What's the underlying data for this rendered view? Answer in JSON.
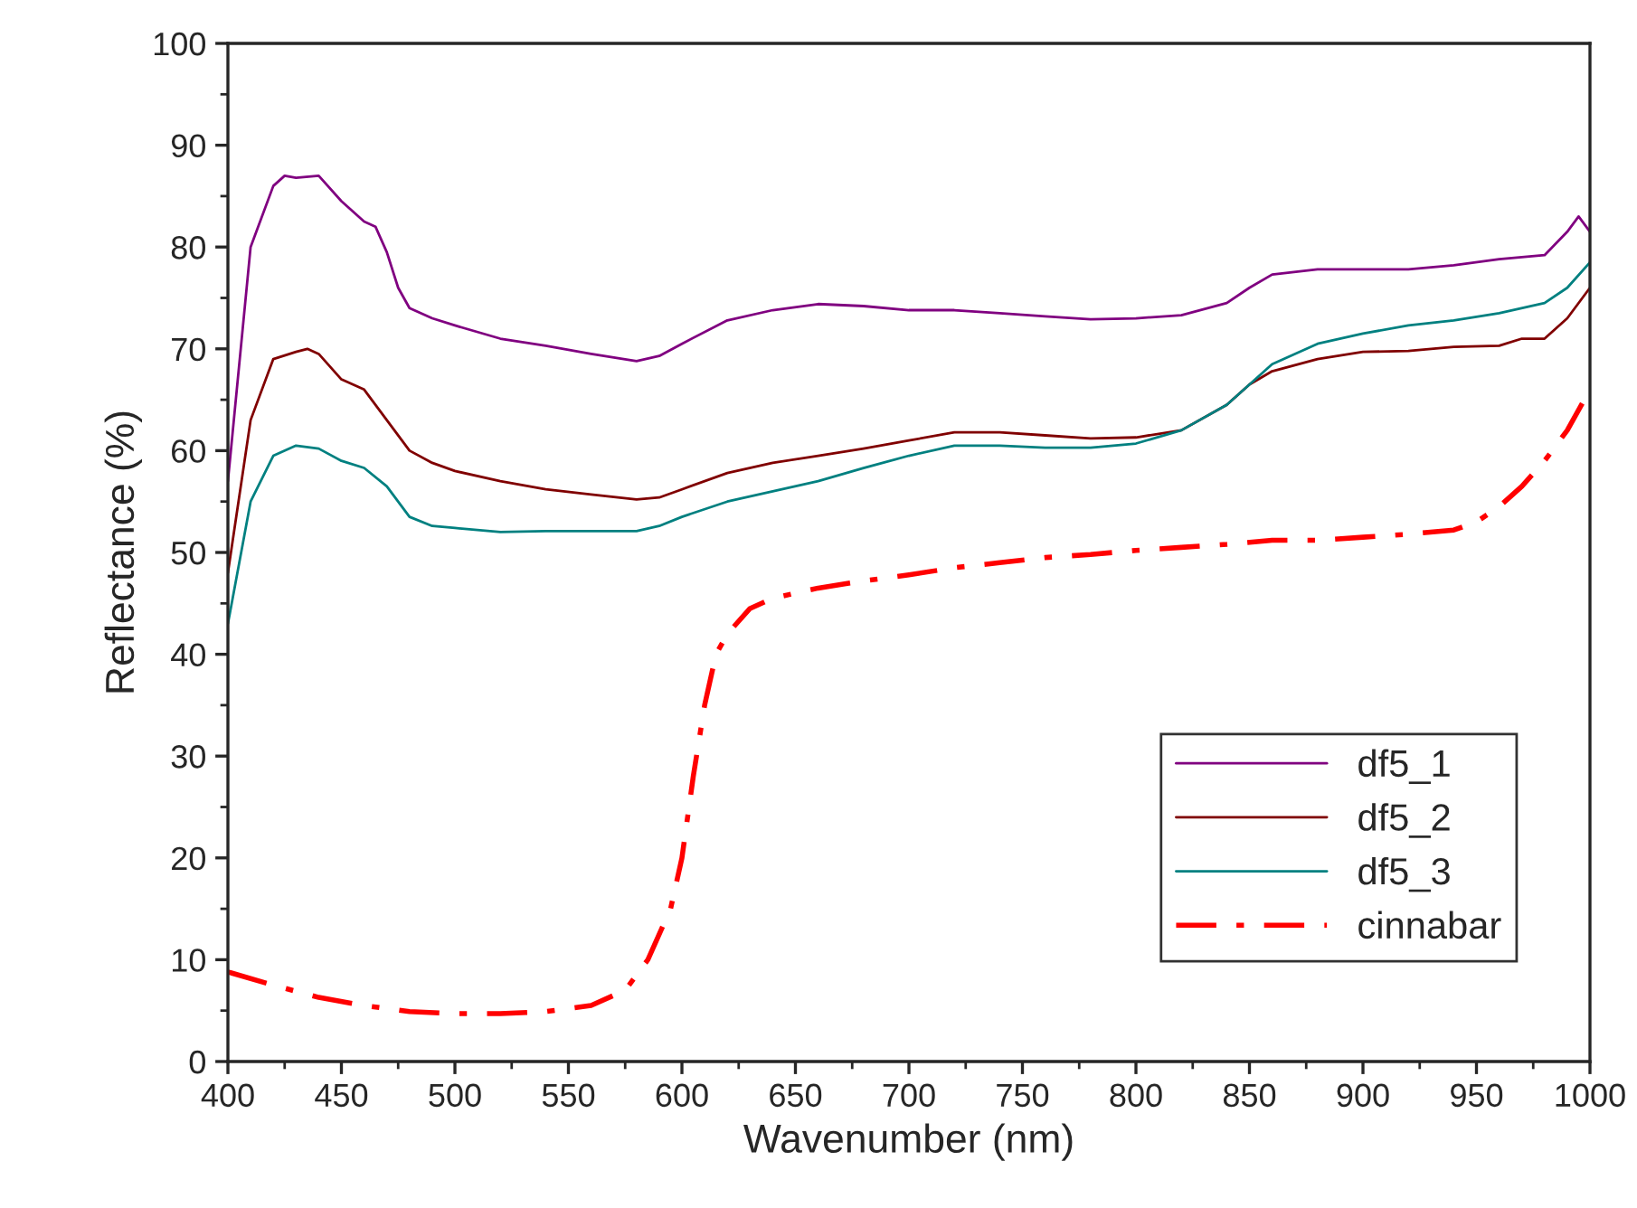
{
  "chart_data": {
    "type": "line",
    "xlabel": "Wavenumber (nm)",
    "ylabel": "Reflectance (%)",
    "xlim": [
      400,
      1000
    ],
    "xticks": [
      400,
      450,
      500,
      550,
      600,
      650,
      700,
      750,
      800,
      850,
      900,
      950,
      1000
    ],
    "ylim": [
      0,
      100
    ],
    "yticks": [
      0,
      10,
      20,
      30,
      40,
      50,
      60,
      70,
      80,
      90,
      100
    ],
    "grid": false,
    "legend": "bottom right",
    "marker": "none",
    "series": [
      {
        "name": "df5_1",
        "color": "#800080",
        "line_style": "solid",
        "x": [
          400,
          410,
          420,
          425,
          430,
          440,
          450,
          460,
          465,
          470,
          475,
          480,
          490,
          500,
          520,
          540,
          560,
          580,
          590,
          600,
          620,
          640,
          660,
          680,
          700,
          720,
          740,
          760,
          780,
          800,
          820,
          840,
          850,
          860,
          880,
          900,
          920,
          940,
          960,
          980,
          990,
          995,
          1000
        ],
        "values": [
          57,
          80,
          86,
          87,
          86.8,
          87,
          84.5,
          82.5,
          82,
          79.5,
          76,
          74,
          73,
          72.3,
          71,
          70.3,
          69.5,
          68.8,
          69.3,
          70.5,
          72.8,
          73.8,
          74.4,
          74.2,
          73.8,
          73.8,
          73.5,
          73.2,
          72.9,
          73,
          73.3,
          74.5,
          76,
          77.3,
          77.8,
          77.8,
          77.8,
          78.2,
          78.8,
          79.2,
          81.5,
          83,
          81.5
        ]
      },
      {
        "name": "df5_2",
        "color": "#800000",
        "line_style": "solid",
        "x": [
          400,
          410,
          420,
          430,
          435,
          440,
          450,
          460,
          470,
          480,
          490,
          500,
          520,
          540,
          560,
          580,
          590,
          600,
          620,
          640,
          660,
          680,
          700,
          720,
          740,
          760,
          780,
          800,
          820,
          840,
          850,
          860,
          880,
          900,
          920,
          940,
          960,
          970,
          980,
          990,
          1000
        ],
        "values": [
          48,
          63,
          69,
          69.7,
          70,
          69.5,
          67,
          66,
          63,
          60,
          58.8,
          58,
          57,
          56.2,
          55.7,
          55.2,
          55.4,
          56.2,
          57.8,
          58.8,
          59.5,
          60.2,
          61,
          61.8,
          61.8,
          61.5,
          61.2,
          61.3,
          62,
          64.5,
          66.5,
          67.8,
          69,
          69.7,
          69.8,
          70.2,
          70.3,
          71,
          71,
          73,
          76
        ]
      },
      {
        "name": "df5_3",
        "color": "#008080",
        "line_style": "solid",
        "x": [
          400,
          410,
          420,
          430,
          440,
          450,
          460,
          470,
          480,
          490,
          500,
          520,
          540,
          560,
          580,
          590,
          600,
          620,
          640,
          660,
          680,
          700,
          720,
          740,
          760,
          780,
          800,
          820,
          840,
          850,
          860,
          880,
          900,
          920,
          940,
          960,
          980,
          990,
          1000
        ],
        "values": [
          43,
          55,
          59.5,
          60.5,
          60.2,
          59,
          58.3,
          56.5,
          53.5,
          52.6,
          52.4,
          52,
          52.1,
          52.1,
          52.1,
          52.6,
          53.5,
          55,
          56,
          57,
          58.3,
          59.5,
          60.5,
          60.5,
          60.3,
          60.3,
          60.7,
          62,
          64.5,
          66.5,
          68.5,
          70.5,
          71.5,
          72.3,
          72.8,
          73.5,
          74.5,
          76,
          78.5
        ]
      },
      {
        "name": "cinnabar",
        "color": "#ff0000",
        "line_style": "dashdot",
        "x": [
          400,
          420,
          440,
          460,
          480,
          500,
          520,
          540,
          560,
          575,
          585,
          595,
          600,
          605,
          610,
          615,
          620,
          630,
          640,
          660,
          680,
          700,
          720,
          740,
          760,
          780,
          800,
          820,
          840,
          860,
          880,
          900,
          920,
          940,
          950,
          960,
          970,
          980,
          990,
          1000
        ],
        "values": [
          8.8,
          7.5,
          6.3,
          5.5,
          4.9,
          4.7,
          4.7,
          4.9,
          5.5,
          7,
          10,
          15,
          20,
          28,
          35,
          40,
          42,
          44.5,
          45.5,
          46.5,
          47.2,
          47.8,
          48.5,
          49,
          49.5,
          49.8,
          50.2,
          50.5,
          50.8,
          51.2,
          51.2,
          51.5,
          51.8,
          52.2,
          53,
          54.5,
          56.5,
          59,
          62,
          66
        ]
      }
    ]
  }
}
